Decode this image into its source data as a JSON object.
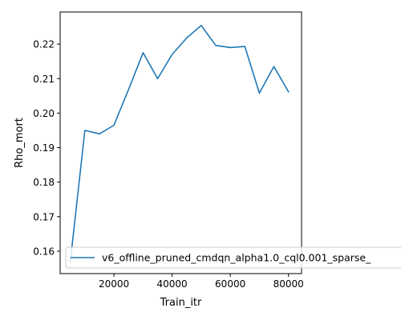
{
  "chart_data": {
    "type": "line",
    "xlabel": "Train_itr",
    "ylabel": "Rho_mort",
    "xlim": [
      1500,
      84500
    ],
    "ylim": [
      0.1535,
      0.2293
    ],
    "xticks": [
      20000,
      40000,
      60000,
      80000
    ],
    "xtick_labels": [
      "20000",
      "40000",
      "60000",
      "80000"
    ],
    "yticks": [
      0.16,
      0.17,
      0.18,
      0.19,
      0.2,
      0.21,
      0.22
    ],
    "ytick_labels": [
      "0.16",
      "0.17",
      "0.18",
      "0.19",
      "0.20",
      "0.21",
      "0.22"
    ],
    "grid": false,
    "legend_position": "lower-left",
    "series": [
      {
        "name": "v6_offline_pruned_cmdqn_alpha1.0_cql0.001_sparse_",
        "color": "#1f77b4",
        "x": [
          5000,
          10000,
          15000,
          20000,
          25000,
          30000,
          35000,
          40000,
          45000,
          50000,
          55000,
          60000,
          65000,
          70000,
          75000,
          80000
        ],
        "y": [
          0.157,
          0.195,
          0.194,
          0.1965,
          0.2068,
          0.2175,
          0.21,
          0.217,
          0.2218,
          0.2254,
          0.2196,
          0.219,
          0.2193,
          0.2058,
          0.2135,
          0.2062
        ]
      }
    ]
  }
}
